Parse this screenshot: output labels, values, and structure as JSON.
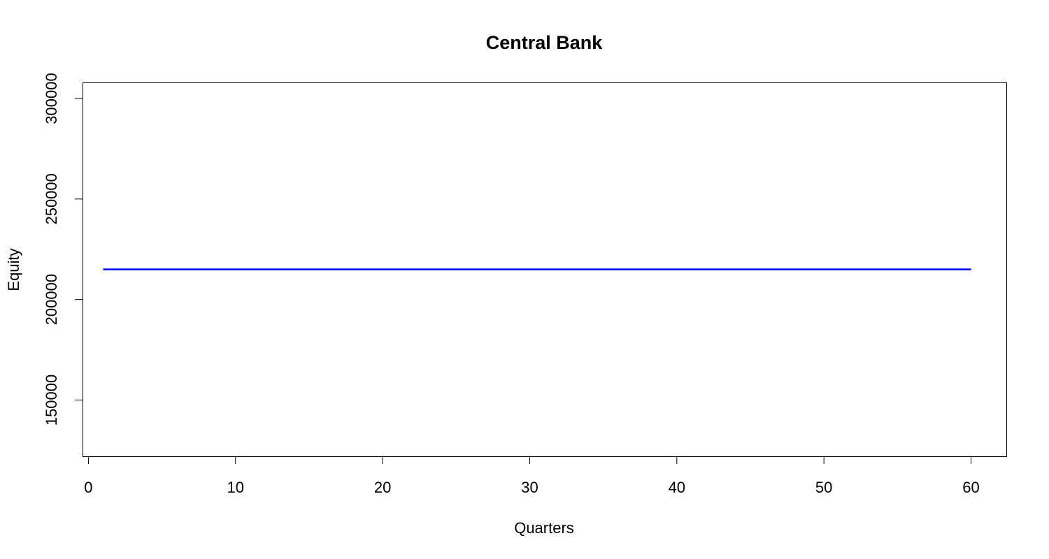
{
  "chart_data": {
    "type": "line",
    "title": "Central Bank",
    "xlabel": "Quarters",
    "ylabel": "Equity",
    "xlim": [
      -0.4,
      62.4
    ],
    "ylim": [
      122000,
      308000
    ],
    "xticks": [
      0,
      10,
      20,
      30,
      40,
      50,
      60
    ],
    "yticks": [
      150000,
      200000,
      250000,
      300000
    ],
    "grid": false,
    "series": [
      {
        "color": "#0000ff",
        "x": [
          1,
          60
        ],
        "values": [
          215000,
          215000
        ]
      }
    ]
  }
}
